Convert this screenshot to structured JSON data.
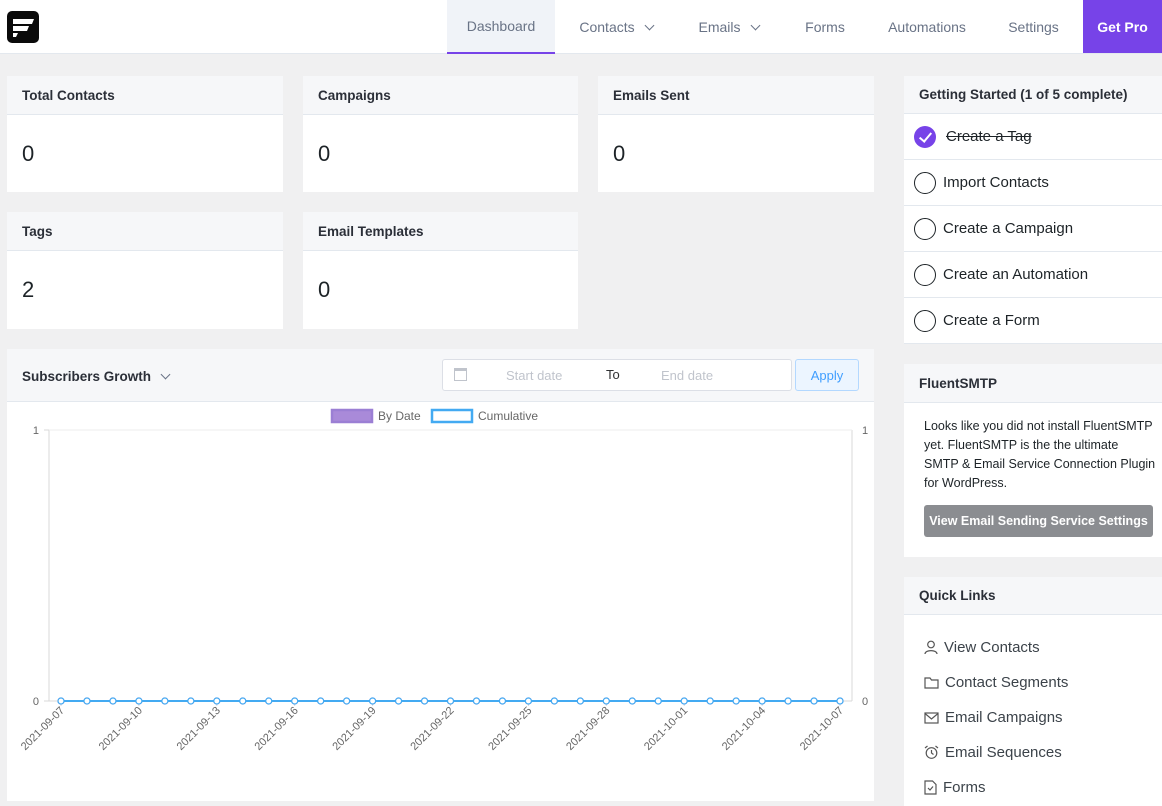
{
  "nav": {
    "items": [
      {
        "label": "Dashboard",
        "active": true,
        "dropdown": false
      },
      {
        "label": "Contacts",
        "active": false,
        "dropdown": true
      },
      {
        "label": "Emails",
        "active": false,
        "dropdown": true
      },
      {
        "label": "Forms",
        "active": false,
        "dropdown": false
      },
      {
        "label": "Automations",
        "active": false,
        "dropdown": false
      },
      {
        "label": "Settings",
        "active": false,
        "dropdown": false
      }
    ],
    "cta": "Get Pro",
    "accent": "#7743e8"
  },
  "stats": [
    {
      "label": "Total Contacts",
      "value": "0"
    },
    {
      "label": "Campaigns",
      "value": "0"
    },
    {
      "label": "Emails Sent",
      "value": "0"
    },
    {
      "label": "Tags",
      "value": "2"
    },
    {
      "label": "Email Templates",
      "value": "0"
    }
  ],
  "growth": {
    "title": "Subscribers Growth",
    "start_placeholder": "Start date",
    "to_label": "To",
    "end_placeholder": "End date",
    "apply_label": "Apply"
  },
  "getting_started": {
    "title": "Getting Started (1 of 5 complete)",
    "items": [
      {
        "label": "Create a Tag",
        "done": true
      },
      {
        "label": "Import Contacts",
        "done": false
      },
      {
        "label": "Create a Campaign",
        "done": false
      },
      {
        "label": "Create an Automation",
        "done": false
      },
      {
        "label": "Create a Form",
        "done": false
      }
    ]
  },
  "fluentsmtp": {
    "title": "FluentSMTP",
    "text": "Looks like you did not install FluentSMTP yet. FluentSMTP is the the ultimate SMTP & Email Service Connection Plugin for WordPress.",
    "button": "View Email Sending Service Settings"
  },
  "quick_links": {
    "title": "Quick Links",
    "items": [
      {
        "label": "View Contacts",
        "icon": "user-icon"
      },
      {
        "label": "Contact Segments",
        "icon": "folder-icon"
      },
      {
        "label": "Email Campaigns",
        "icon": "envelope-icon"
      },
      {
        "label": "Email Sequences",
        "icon": "alarm-clock-icon"
      },
      {
        "label": "Forms",
        "icon": "document-icon"
      }
    ]
  },
  "chart_data": {
    "type": "line",
    "x": [
      "2021-09-07",
      "2021-09-08",
      "2021-09-09",
      "2021-09-10",
      "2021-09-11",
      "2021-09-12",
      "2021-09-13",
      "2021-09-14",
      "2021-09-15",
      "2021-09-16",
      "2021-09-17",
      "2021-09-18",
      "2021-09-19",
      "2021-09-20",
      "2021-09-21",
      "2021-09-22",
      "2021-09-23",
      "2021-09-24",
      "2021-09-25",
      "2021-09-26",
      "2021-09-27",
      "2021-09-28",
      "2021-09-29",
      "2021-09-30",
      "2021-10-01",
      "2021-10-02",
      "2021-10-03",
      "2021-10-04",
      "2021-10-05",
      "2021-10-06",
      "2021-10-07"
    ],
    "x_tick_labels": [
      "2021-09-07",
      "2021-09-10",
      "2021-09-13",
      "2021-09-16",
      "2021-09-19",
      "2021-09-22",
      "2021-09-25",
      "2021-09-28",
      "2021-10-01",
      "2021-10-04",
      "2021-10-07"
    ],
    "series": [
      {
        "name": "By Date",
        "color": "#9b7fd4",
        "values": [
          0,
          0,
          0,
          0,
          0,
          0,
          0,
          0,
          0,
          0,
          0,
          0,
          0,
          0,
          0,
          0,
          0,
          0,
          0,
          0,
          0,
          0,
          0,
          0,
          0,
          0,
          0,
          0,
          0,
          0,
          0
        ]
      },
      {
        "name": "Cumulative",
        "color": "#43aaf2",
        "values": [
          0,
          0,
          0,
          0,
          0,
          0,
          0,
          0,
          0,
          0,
          0,
          0,
          0,
          0,
          0,
          0,
          0,
          0,
          0,
          0,
          0,
          0,
          0,
          0,
          0,
          0,
          0,
          0,
          0,
          0,
          0
        ]
      }
    ],
    "ylim": [
      0,
      1
    ],
    "y_tick_labels": [
      "0",
      "1"
    ],
    "legend": "top"
  }
}
